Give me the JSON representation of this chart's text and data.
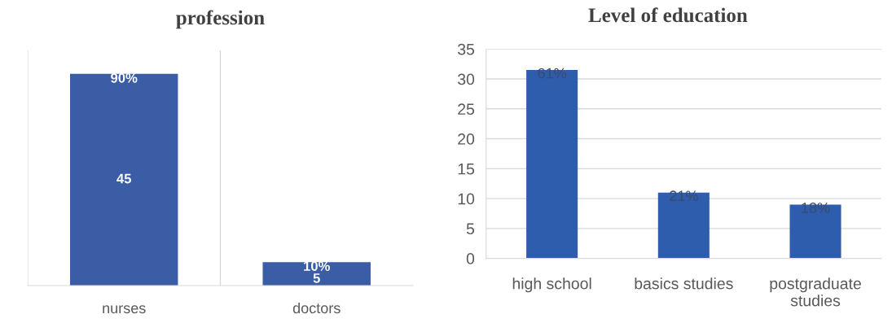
{
  "chart_data": [
    {
      "type": "bar",
      "title": "profession",
      "categories": [
        "nurses",
        "doctors"
      ],
      "values": [
        45,
        5
      ],
      "color": "#3a5da5",
      "ylim": [
        0,
        50
      ],
      "data_labels": true,
      "annotations": [
        {
          "text": "90%",
          "x": "nurses",
          "y": 45
        },
        {
          "text": "10%",
          "x": "doctors",
          "y": 5
        }
      ],
      "grid": "x",
      "tick_labels": "x"
    },
    {
      "type": "bar",
      "title": "Level of education",
      "categories": [
        "high school",
        "basics studies",
        "postgraduate studies"
      ],
      "values": [
        31.5,
        11,
        9
      ],
      "annotations": [
        {
          "text": "61%",
          "x": "high school",
          "y": 31.5
        },
        {
          "text": "21%",
          "x": "basics studies",
          "y": 11
        },
        {
          "text": "18%",
          "x": "postgraduate studies",
          "y": 9
        }
      ],
      "color": "#2f5dae",
      "ylim": [
        0,
        35
      ],
      "yticks": [
        0,
        5,
        10,
        15,
        20,
        25,
        30,
        35
      ],
      "grid": "y"
    }
  ]
}
